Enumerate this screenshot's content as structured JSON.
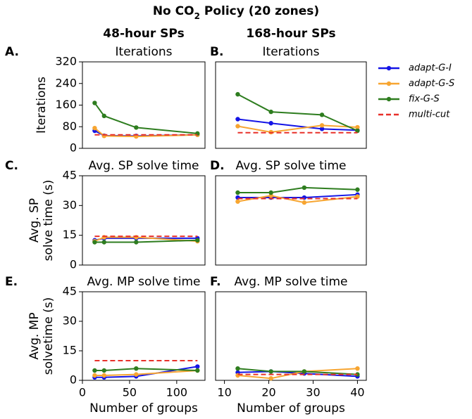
{
  "title": {
    "main": "No CO",
    "sub": "2",
    "rest": " Policy (20 zones)"
  },
  "column_titles": [
    "48-hour SPs",
    "168-hour SPs"
  ],
  "chart_data": [
    {
      "type": "line",
      "label": "A.",
      "title": "Iterations",
      "ylabel": [
        "Iterations"
      ],
      "x": [
        13,
        23,
        57,
        122
      ],
      "xlim": [
        0,
        130
      ],
      "ylim": [
        0,
        320
      ],
      "yticks": [
        0,
        80,
        160,
        240,
        320
      ],
      "series": [
        {
          "name": "adapt-G-I",
          "color": "#1414e6",
          "values": [
            65,
            47,
            46,
            50
          ]
        },
        {
          "name": "adapt-G-S",
          "color": "#f7a531",
          "values": [
            75,
            46,
            44,
            50
          ]
        },
        {
          "name": "fix-G-S",
          "color": "#2e7d1f",
          "values": [
            168,
            120,
            77,
            55
          ]
        },
        {
          "name": "multi-cut",
          "color": "#e8302a",
          "dash": true,
          "values": [
            50,
            50,
            50,
            50
          ]
        }
      ]
    },
    {
      "type": "line",
      "label": "B.",
      "title": "Iterations",
      "x": [
        13,
        20.5,
        32,
        40
      ],
      "xlim": [
        8,
        42
      ],
      "ylim": [
        0,
        320
      ],
      "series": [
        {
          "name": "adapt-G-I",
          "color": "#1414e6",
          "values": [
            108,
            93,
            72,
            67
          ]
        },
        {
          "name": "adapt-G-S",
          "color": "#f7a531",
          "values": [
            82,
            60,
            85,
            78
          ]
        },
        {
          "name": "fix-G-S",
          "color": "#2e7d1f",
          "values": [
            200,
            135,
            124,
            65
          ]
        },
        {
          "name": "multi-cut",
          "color": "#e8302a",
          "dash": true,
          "values": [
            58,
            58,
            58,
            58
          ]
        }
      ]
    },
    {
      "type": "line",
      "label": "C.",
      "title": "Avg. SP solve time",
      "ylabel": [
        "Avg. SP",
        "solve time (s)"
      ],
      "x": [
        13,
        23,
        57,
        122
      ],
      "xlim": [
        0,
        130
      ],
      "ylim": [
        0,
        45
      ],
      "yticks": [
        0,
        15,
        30,
        45
      ],
      "series": [
        {
          "name": "adapt-G-I",
          "color": "#1414e6",
          "values": [
            12.5,
            13.5,
            13.5,
            13.5
          ]
        },
        {
          "name": "adapt-G-S",
          "color": "#f7a531",
          "values": [
            12,
            14,
            14,
            12
          ]
        },
        {
          "name": "fix-G-S",
          "color": "#2e7d1f",
          "values": [
            11.5,
            11.5,
            11.5,
            12.5
          ]
        },
        {
          "name": "multi-cut",
          "color": "#e8302a",
          "dash": true,
          "values": [
            14.5,
            14.5,
            14.5,
            14.5
          ]
        }
      ]
    },
    {
      "type": "line",
      "label": "D.",
      "title": "Avg. SP solve time",
      "x": [
        13,
        20.5,
        28,
        40
      ],
      "xlim": [
        8,
        42
      ],
      "ylim": [
        0,
        45
      ],
      "series": [
        {
          "name": "adapt-G-I",
          "color": "#1414e6",
          "values": [
            34,
            34,
            34,
            35.5
          ]
        },
        {
          "name": "adapt-G-S",
          "color": "#f7a531",
          "values": [
            32,
            35,
            31.5,
            34.5
          ]
        },
        {
          "name": "fix-G-S",
          "color": "#2e7d1f",
          "values": [
            36.5,
            36.5,
            39,
            38
          ]
        },
        {
          "name": "multi-cut",
          "color": "#e8302a",
          "dash": true,
          "values": [
            33.5,
            33.5,
            33.5,
            33.5
          ]
        }
      ]
    },
    {
      "type": "line",
      "label": "E.",
      "title": "Avg. MP solve time",
      "ylabel": [
        "Avg. MP",
        "solvetime (s)"
      ],
      "xlabel": "Number of groups",
      "x": [
        13,
        23,
        57,
        122
      ],
      "xlim": [
        0,
        130
      ],
      "xticks": [
        0,
        50,
        100
      ],
      "ylim": [
        0,
        45
      ],
      "yticks": [
        0,
        15,
        30,
        45
      ],
      "series": [
        {
          "name": "adapt-G-I",
          "color": "#1414e6",
          "values": [
            1.5,
            1.5,
            2,
            7
          ]
        },
        {
          "name": "adapt-G-S",
          "color": "#f7a531",
          "values": [
            2.5,
            2.5,
            3,
            5
          ]
        },
        {
          "name": "fix-G-S",
          "color": "#2e7d1f",
          "values": [
            5,
            5,
            6,
            5
          ]
        },
        {
          "name": "multi-cut",
          "color": "#e8302a",
          "dash": true,
          "values": [
            10,
            10,
            10,
            10
          ]
        }
      ]
    },
    {
      "type": "line",
      "label": "F.",
      "title": "Avg. MP solve time",
      "xlabel": "Number of groups",
      "x": [
        13,
        20.5,
        28,
        40
      ],
      "xlim": [
        8,
        42
      ],
      "xticks": [
        10,
        20,
        30,
        40
      ],
      "ylim": [
        0,
        45
      ],
      "series": [
        {
          "name": "adapt-G-I",
          "color": "#1414e6",
          "values": [
            4,
            4.5,
            3.5,
            2
          ]
        },
        {
          "name": "adapt-G-S",
          "color": "#f7a531",
          "values": [
            2.5,
            1,
            4.5,
            6
          ]
        },
        {
          "name": "fix-G-S",
          "color": "#2e7d1f",
          "values": [
            6,
            4.5,
            4.5,
            3
          ]
        },
        {
          "name": "multi-cut",
          "color": "#e8302a",
          "dash": true,
          "values": [
            3,
            3,
            3,
            3
          ]
        }
      ]
    }
  ]
}
